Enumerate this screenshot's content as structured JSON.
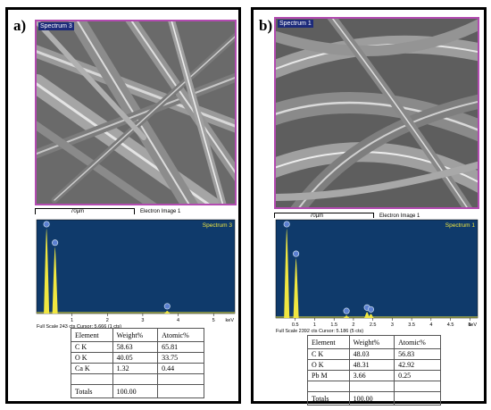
{
  "panels": [
    {
      "letter": "a)",
      "image": {
        "spectrum_tag": "Spectrum 3",
        "scale": "70µm",
        "caption": "Electron Image 1"
      },
      "chart_data": {
        "type": "line",
        "title": "Spectrum 3",
        "xlabel": "keV",
        "xlim": [
          0,
          5.6
        ],
        "x_ticks": [
          "1",
          "2",
          "3",
          "4",
          "5"
        ],
        "footer": "Full Scale 243 cts Cursor: 5.666  (1 cts)",
        "peaks": [
          {
            "element": "C",
            "energy_kev": 0.28,
            "counts": 243
          },
          {
            "element": "O",
            "energy_kev": 0.52,
            "counts": 190
          },
          {
            "element": "Ca",
            "energy_kev": 3.69,
            "counts": 8
          }
        ],
        "background_color": "#0f3a6b",
        "peak_color": "#f0e640"
      },
      "table": {
        "headers": [
          "Element",
          "Weight%",
          "Atomic%"
        ],
        "rows": [
          [
            "C K",
            "58.63",
            "65.81"
          ],
          [
            "O K",
            "40.05",
            "33.75"
          ],
          [
            "Ca K",
            "1.32",
            "0.44"
          ]
        ],
        "totals": [
          "Totals",
          "100.00",
          ""
        ]
      }
    },
    {
      "letter": "b)",
      "image": {
        "spectrum_tag": "Spectrum 1",
        "scale": "70µm",
        "caption": "Electron Image 1"
      },
      "chart_data": {
        "type": "line",
        "title": "Spectrum 1",
        "xlabel": "keV",
        "xlim": [
          0,
          5.2
        ],
        "x_ticks": [
          "0.5",
          "1",
          "1.5",
          "2",
          "2.5",
          "3",
          "3.5",
          "4",
          "4.5",
          "5"
        ],
        "footer": "Full Scale 2392 cts Cursor: 5.186  (5 cts)",
        "peaks": [
          {
            "element": "C",
            "energy_kev": 0.28,
            "counts": 2392
          },
          {
            "element": "O",
            "energy_kev": 0.52,
            "counts": 1600
          },
          {
            "element": "Pb",
            "energy_kev": 2.35,
            "counts": 160
          },
          {
            "element": "Pb",
            "energy_kev": 2.45,
            "counts": 110
          },
          {
            "element": "Pb",
            "energy_kev": 1.82,
            "counts": 70
          }
        ],
        "background_color": "#0f3a6b",
        "peak_color": "#f0e640"
      },
      "table": {
        "headers": [
          "Element",
          "Weight%",
          "Atomic%"
        ],
        "rows": [
          [
            "C K",
            "48.03",
            "56.83"
          ],
          [
            "O K",
            "48.31",
            "42.92"
          ],
          [
            "Pb M",
            "3.66",
            "0.25"
          ]
        ],
        "totals": [
          "Totals",
          "100.00",
          ""
        ]
      }
    }
  ]
}
